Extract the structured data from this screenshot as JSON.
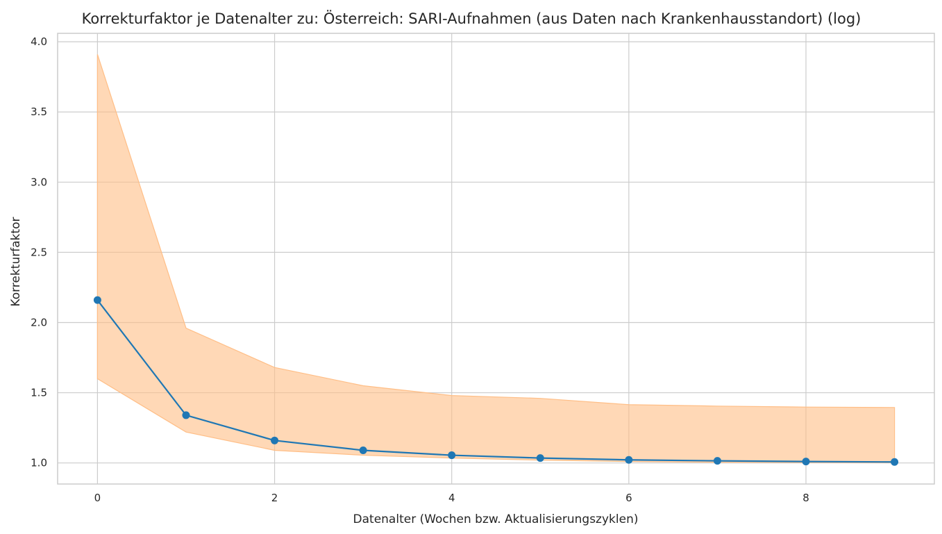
{
  "chart_data": {
    "type": "line",
    "title": "Korrekturfaktor je Datenalter zu: Österreich: SARI-Aufnahmen (aus Daten nach Krankenhausstandort) (log)",
    "xlabel": "Datenalter (Wochen bzw. Aktualisierungszyklen)",
    "ylabel": "Korrekturfaktor",
    "x": [
      0,
      1,
      2,
      3,
      4,
      5,
      6,
      7,
      8,
      9
    ],
    "series": [
      {
        "values": [
          2.16,
          1.34,
          1.16,
          1.09,
          1.055,
          1.035,
          1.022,
          1.015,
          1.01,
          1.007
        ],
        "color": "#1f77b4"
      }
    ],
    "band": {
      "lower": [
        1.6,
        1.22,
        1.09,
        1.055,
        1.035,
        1.02,
        1.01,
        1.005,
        1.003,
        1.002
      ],
      "upper": [
        3.91,
        1.96,
        1.68,
        1.55,
        1.48,
        1.46,
        1.415,
        1.405,
        1.398,
        1.395
      ],
      "color": "#ffbe86"
    },
    "xlim": [
      -0.45,
      9.45
    ],
    "ylim": [
      0.85,
      4.06
    ],
    "xticks": [
      "0",
      "2",
      "4",
      "6",
      "8"
    ],
    "yticks": [
      "1.0",
      "1.5",
      "2.0",
      "2.5",
      "3.0",
      "3.5",
      "4.0"
    ],
    "grid": true
  }
}
